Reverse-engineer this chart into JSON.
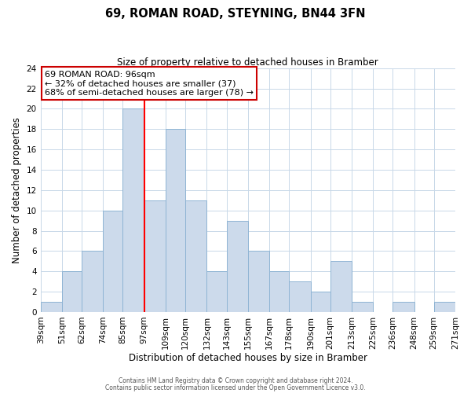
{
  "title": "69, ROMAN ROAD, STEYNING, BN44 3FN",
  "subtitle": "Size of property relative to detached houses in Bramber",
  "xlabel": "Distribution of detached houses by size in Bramber",
  "ylabel": "Number of detached properties",
  "bin_edges": [
    39,
    51,
    62,
    74,
    85,
    97,
    109,
    120,
    132,
    143,
    155,
    167,
    178,
    190,
    201,
    213,
    225,
    236,
    248,
    259,
    271
  ],
  "counts": [
    1,
    4,
    6,
    10,
    20,
    11,
    18,
    11,
    4,
    9,
    6,
    4,
    3,
    2,
    5,
    1,
    0,
    1,
    0,
    1
  ],
  "bar_color": "#ccdaeb",
  "bar_edge_color": "#8fb4d4",
  "red_line_x": 97,
  "ylim": [
    0,
    24
  ],
  "yticks": [
    0,
    2,
    4,
    6,
    8,
    10,
    12,
    14,
    16,
    18,
    20,
    22,
    24
  ],
  "annotation_title": "69 ROMAN ROAD: 96sqm",
  "annotation_line1": "← 32% of detached houses are smaller (37)",
  "annotation_line2": "68% of semi-detached houses are larger (78) →",
  "annotation_box_color": "#ffffff",
  "annotation_box_edge": "#cc0000",
  "footer1": "Contains HM Land Registry data © Crown copyright and database right 2024.",
  "footer2": "Contains public sector information licensed under the Open Government Licence v3.0.",
  "background_color": "#ffffff",
  "grid_color": "#c8d8e8",
  "title_fontsize": 10.5,
  "subtitle_fontsize": 8.5,
  "xlabel_fontsize": 8.5,
  "ylabel_fontsize": 8.5,
  "tick_fontsize": 7.5,
  "footer_fontsize": 5.5
}
